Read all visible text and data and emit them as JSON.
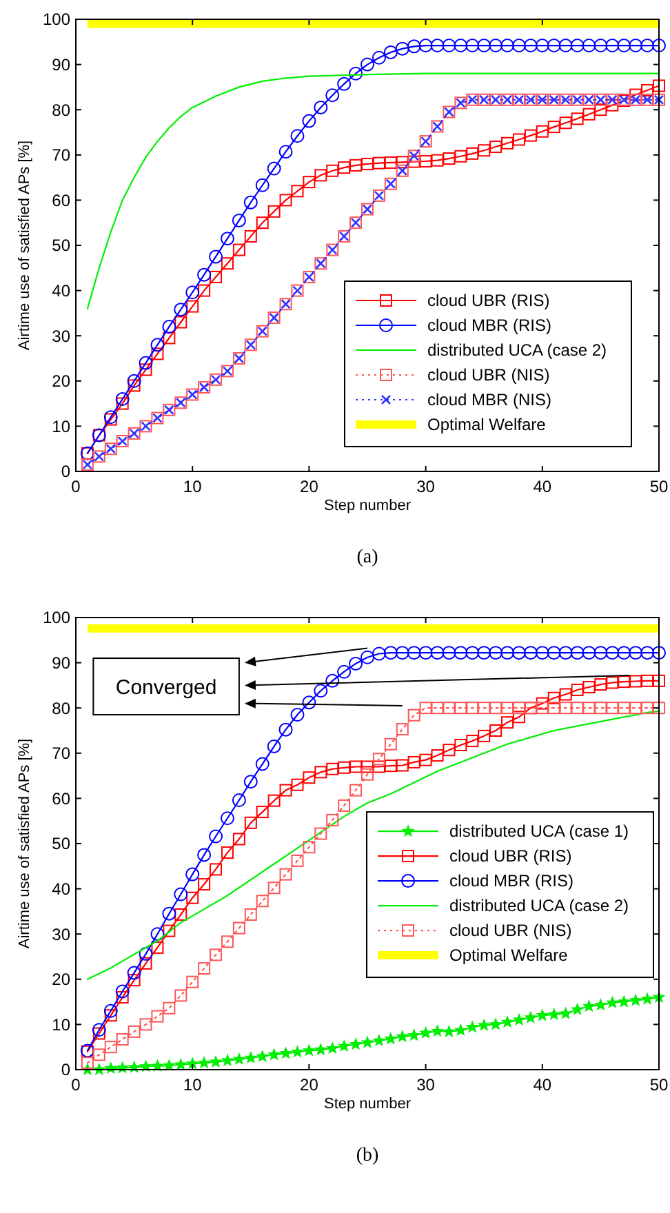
{
  "chart_data": [
    {
      "type": "line",
      "title": "(a)",
      "xlabel": "Step number",
      "ylabel": "Airtime use of satisfied APs [%]",
      "x": [
        1,
        2,
        3,
        4,
        5,
        6,
        7,
        8,
        9,
        10,
        11,
        12,
        13,
        14,
        15,
        16,
        17,
        18,
        19,
        20,
        21,
        22,
        23,
        24,
        25,
        26,
        27,
        28,
        29,
        30,
        31,
        32,
        33,
        34,
        35,
        36,
        37,
        38,
        39,
        40,
        41,
        42,
        43,
        44,
        45,
        46,
        47,
        48,
        49,
        50
      ],
      "xlim": [
        0,
        50
      ],
      "ylim": [
        0,
        100
      ],
      "xticks": [
        0,
        10,
        20,
        30,
        40,
        50
      ],
      "yticks": [
        0,
        10,
        20,
        30,
        40,
        50,
        60,
        70,
        80,
        90,
        100
      ],
      "grid": false,
      "legend": "bottom right",
      "series": [
        {
          "name": "cloud UBR (RIS)",
          "color": "#ff0000",
          "marker": "square",
          "line_style": "solid",
          "values": [
            4,
            8,
            11.5,
            15,
            19,
            22.5,
            26,
            29.5,
            33,
            36.5,
            40,
            43,
            46,
            49,
            52,
            55,
            57.5,
            60,
            62,
            64,
            65.5,
            66.5,
            67.2,
            67.7,
            68,
            68.2,
            68.3,
            68.4,
            68.5,
            68.6,
            68.8,
            69.2,
            69.7,
            70.3,
            71,
            71.8,
            72.6,
            73.4,
            74.3,
            75.2,
            76.2,
            77.1,
            78,
            79,
            80,
            81,
            82,
            83.3,
            84.3,
            85.3
          ]
        },
        {
          "name": "cloud MBR (RIS)",
          "color": "#0000ff",
          "marker": "circle",
          "line_style": "solid",
          "values": [
            4,
            8,
            12,
            16,
            20,
            24,
            28,
            32,
            35.8,
            39.6,
            43.5,
            47.5,
            51.5,
            55.5,
            59.5,
            63.3,
            67,
            70.7,
            74.2,
            77.5,
            80.5,
            83.2,
            85.7,
            88,
            90,
            91.5,
            92.7,
            93.5,
            94,
            94.2,
            94.2,
            94.2,
            94.2,
            94.2,
            94.2,
            94.2,
            94.2,
            94.2,
            94.2,
            94.2,
            94.2,
            94.2,
            94.2,
            94.2,
            94.2,
            94.2,
            94.2,
            94.2,
            94.2,
            94.2
          ]
        },
        {
          "name": "distributed UCA (case 2)",
          "color": "#00ee00",
          "marker": "none",
          "line_style": "solid",
          "x": [
            1,
            2,
            3,
            4,
            5,
            6,
            7,
            8,
            9,
            10,
            12,
            14,
            16,
            18,
            20,
            25,
            30,
            50
          ],
          "values": [
            36,
            45,
            53,
            60,
            65,
            69.5,
            73,
            76,
            78.5,
            80.5,
            83,
            85,
            86.3,
            87,
            87.4,
            87.8,
            88,
            88
          ]
        },
        {
          "name": "cloud UBR (NIS)",
          "color": "#ff5555",
          "marker": "square",
          "line_style": "dotted",
          "values": [
            1.5,
            3.3,
            5,
            6.7,
            8.4,
            10,
            11.8,
            13.6,
            15.2,
            17,
            18.6,
            20.3,
            22.2,
            25,
            28,
            31,
            34,
            37,
            40,
            43,
            46,
            49,
            52,
            55,
            58,
            61,
            63.6,
            66.5,
            69.8,
            73,
            76.3,
            79.5,
            81.5,
            82.2,
            82.2,
            82.2,
            82.2,
            82.2,
            82.2,
            82.2,
            82.2,
            82.2,
            82.2,
            82.2,
            82.2,
            82.2,
            82.2,
            82.2,
            82.2,
            82.2
          ]
        },
        {
          "name": "cloud MBR (NIS)",
          "color": "#3333ff",
          "marker": "cross",
          "line_style": "dotted",
          "values": [
            1.5,
            3.3,
            5,
            6.7,
            8.4,
            10,
            11.8,
            13.6,
            15.2,
            17,
            18.6,
            20.3,
            22.2,
            25,
            28,
            31,
            34,
            37,
            40,
            43,
            46,
            49,
            52,
            55,
            58,
            61,
            63.6,
            66.5,
            69.8,
            73,
            76.3,
            79.5,
            81.5,
            82.2,
            82.2,
            82.2,
            82.2,
            82.2,
            82.2,
            82.2,
            82.2,
            82.2,
            82.2,
            82.2,
            82.2,
            82.2,
            82.2,
            82.2,
            82.2,
            82.2
          ]
        }
      ],
      "ref_lines": [
        {
          "axis": "y",
          "value": 99,
          "label": "Optimal Welfare",
          "color": "#ffff00"
        }
      ]
    },
    {
      "type": "line",
      "title": "(b)",
      "xlabel": "Step number",
      "ylabel": "Airtime use of satisfied APs [%]",
      "annotations": [
        "Converged"
      ],
      "x": [
        1,
        2,
        3,
        4,
        5,
        6,
        7,
        8,
        9,
        10,
        11,
        12,
        13,
        14,
        15,
        16,
        17,
        18,
        19,
        20,
        21,
        22,
        23,
        24,
        25,
        26,
        27,
        28,
        29,
        30,
        31,
        32,
        33,
        34,
        35,
        36,
        37,
        38,
        39,
        40,
        41,
        42,
        43,
        44,
        45,
        46,
        47,
        48,
        49,
        50
      ],
      "xlim": [
        0,
        50
      ],
      "ylim": [
        0,
        100
      ],
      "xticks": [
        0,
        10,
        20,
        30,
        40,
        50
      ],
      "yticks": [
        0,
        10,
        20,
        30,
        40,
        50,
        60,
        70,
        80,
        90,
        100
      ],
      "grid": false,
      "legend": "right",
      "series": [
        {
          "name": "distributed UCA (case 1)",
          "color": "#00ee00",
          "marker": "star",
          "line_style": "solid",
          "values": [
            0,
            0,
            0.3,
            0.4,
            0.5,
            0.7,
            0.8,
            0.9,
            1.1,
            1.3,
            1.5,
            1.7,
            2,
            2.3,
            2.6,
            2.9,
            3.3,
            3.6,
            3.9,
            4.2,
            4.4,
            4.7,
            5.2,
            5.6,
            6,
            6.4,
            6.8,
            7.3,
            7.6,
            8.1,
            8.5,
            8.4,
            8.7,
            9.4,
            9.8,
            10,
            10.5,
            11,
            11.5,
            12,
            12.2,
            12.4,
            13.3,
            14,
            14.3,
            14.8,
            15,
            15.3,
            15.6,
            16
          ]
        },
        {
          "name": "cloud UBR (RIS)",
          "color": "#ff0000",
          "marker": "square",
          "line_style": "solid",
          "values": [
            4,
            8,
            12,
            16,
            19.8,
            23.5,
            27,
            30.7,
            34.3,
            38,
            41,
            44.3,
            48,
            51,
            54.6,
            57,
            59.5,
            61.8,
            63,
            64.6,
            65.8,
            66.5,
            66.8,
            67,
            67,
            67,
            67.2,
            67.3,
            68,
            68.5,
            69.5,
            70.7,
            71.8,
            72.7,
            73.8,
            75,
            76.8,
            78,
            80,
            81,
            82.2,
            83,
            84,
            84.6,
            85.2,
            85.6,
            85.8,
            85.9,
            86,
            86
          ]
        },
        {
          "name": "cloud MBR (RIS)",
          "color": "#0000ff",
          "marker": "circle",
          "line_style": "solid",
          "values": [
            4.2,
            8.8,
            13,
            17.3,
            21.4,
            25.6,
            30,
            34.5,
            38.8,
            43.2,
            47.5,
            51.6,
            55.6,
            59.6,
            63.7,
            67.6,
            71.5,
            75.2,
            78.5,
            81.2,
            83.8,
            86,
            88,
            89.8,
            91.2,
            92,
            92.2,
            92.2,
            92.2,
            92.2,
            92.2,
            92.2,
            92.2,
            92.2,
            92.2,
            92.2,
            92.2,
            92.2,
            92.2,
            92.2,
            92.2,
            92.2,
            92.2,
            92.2,
            92.2,
            92.2,
            92.2,
            92.2,
            92.2,
            92.2
          ]
        },
        {
          "name": "distributed UCA (case 2)",
          "color": "#00ee00",
          "marker": "none",
          "line_style": "solid",
          "x": [
            1,
            3,
            5,
            7,
            9,
            11,
            13,
            15,
            17,
            19,
            21,
            23,
            25,
            27,
            29,
            31,
            33,
            35,
            37,
            39,
            41,
            43,
            45,
            47,
            49,
            50
          ],
          "values": [
            20,
            22.5,
            25.5,
            28.5,
            32.5,
            35.5,
            38.5,
            42,
            45.5,
            49,
            52.5,
            56,
            59,
            61,
            63.5,
            66,
            68,
            70,
            72,
            73.5,
            75,
            76,
            77,
            78,
            79,
            79.3
          ]
        },
        {
          "name": "cloud UBR (NIS)",
          "color": "#ff5555",
          "marker": "square",
          "line_style": "dotted",
          "values": [
            1.5,
            3.3,
            5,
            6.7,
            8.4,
            10,
            11.8,
            13.6,
            16.4,
            19.4,
            22.4,
            25.4,
            28.3,
            31.3,
            34.3,
            37.3,
            40.2,
            43.2,
            46.2,
            49.2,
            52.2,
            55.2,
            58.4,
            61.8,
            65.3,
            68.7,
            72,
            75.3,
            78.4,
            80,
            80,
            80,
            80,
            80,
            80,
            80,
            80,
            80,
            80,
            80,
            80,
            80,
            80,
            80,
            80,
            80,
            80,
            80,
            80,
            80
          ]
        }
      ],
      "ref_lines": [
        {
          "axis": "y",
          "value": 97.6,
          "label": "Optimal Welfare",
          "color": "#ffff00"
        }
      ]
    }
  ]
}
